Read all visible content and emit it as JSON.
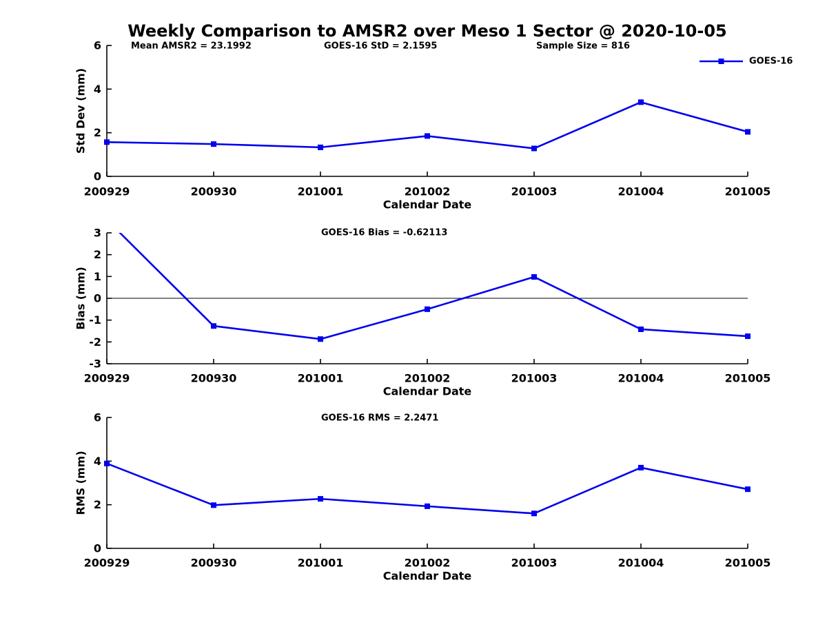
{
  "figure": {
    "title": "Weekly Comparison to AMSR2 over Meso 1 Sector @ 2020-10-05",
    "background_color": "#ffffff",
    "line_color": "#0000ee",
    "axis_color": "#000000",
    "text_color": "#000000"
  },
  "legend": {
    "label": "GOES-16",
    "marker": "filled-square",
    "color": "#0000ee",
    "position": "upper-right-of-first-subplot"
  },
  "chart_data": [
    {
      "type": "line",
      "title": "",
      "categories": [
        "200929",
        "200930",
        "201001",
        "201002",
        "201003",
        "201004",
        "201005"
      ],
      "series": [
        {
          "name": "GOES-16",
          "values": [
            1.57,
            1.48,
            1.33,
            1.85,
            1.28,
            3.4,
            2.04
          ]
        }
      ],
      "xlabel": "Calendar Date",
      "ylabel": "Std Dev (mm)",
      "ylim": [
        0,
        6
      ],
      "yticks": [
        0,
        2,
        4,
        6
      ],
      "grid": false,
      "zero_line": false,
      "annotations": [
        "Mean AMSR2 = 23.1992",
        "GOES-16 StD = 2.1595",
        "Sample Size = 816"
      ],
      "marker": "square"
    },
    {
      "type": "line",
      "title": "",
      "categories": [
        "200929",
        "200930",
        "201001",
        "201002",
        "201003",
        "201004",
        "201005"
      ],
      "series": [
        {
          "name": "GOES-16",
          "values": [
            3.6,
            -1.27,
            -1.87,
            -0.5,
            0.98,
            -1.42,
            -1.74
          ]
        }
      ],
      "xlabel": "Calendar Date",
      "ylabel": "Bias (mm)",
      "ylim": [
        -3,
        3
      ],
      "yticks": [
        -3,
        -2,
        -1,
        0,
        1,
        2,
        3
      ],
      "grid": false,
      "zero_line": true,
      "annotations": [
        "GOES-16 Bias  = -0.62113"
      ],
      "marker": "square",
      "note": "first point exceeds y-axis limit and is clipped at top edge"
    },
    {
      "type": "line",
      "title": "",
      "categories": [
        "200929",
        "200930",
        "201001",
        "201002",
        "201003",
        "201004",
        "201005"
      ],
      "series": [
        {
          "name": "GOES-16",
          "values": [
            3.89,
            1.98,
            2.27,
            1.93,
            1.6,
            3.7,
            2.71
          ]
        }
      ],
      "xlabel": "Calendar Date",
      "ylabel": "RMS (mm)",
      "ylim": [
        0,
        6
      ],
      "yticks": [
        0,
        2,
        4,
        6
      ],
      "grid": false,
      "zero_line": false,
      "annotations": [
        "GOES-16 RMS = 2.2471"
      ],
      "marker": "square"
    }
  ]
}
